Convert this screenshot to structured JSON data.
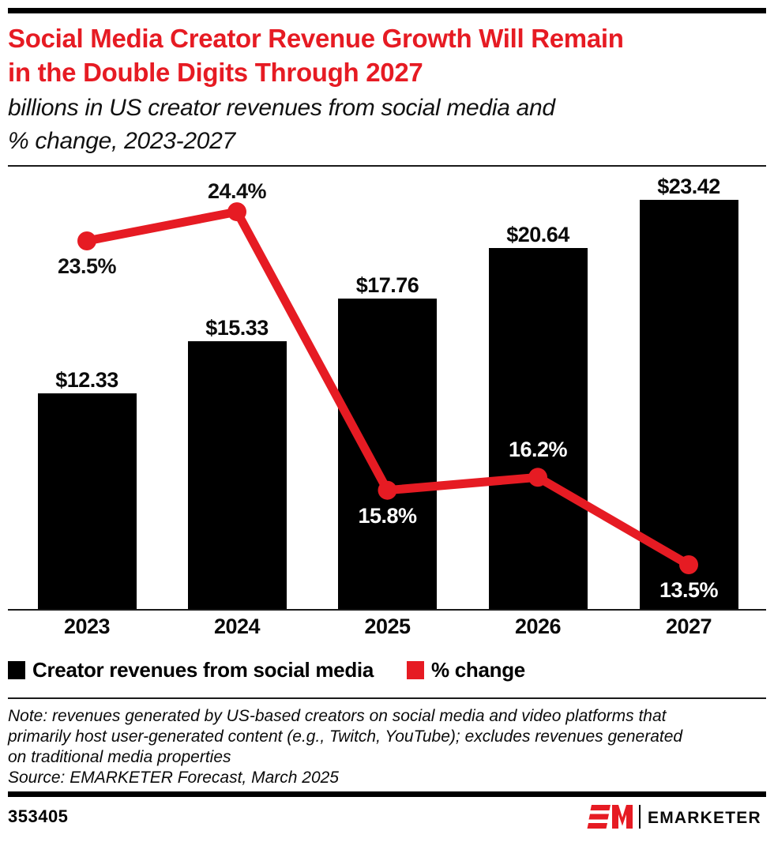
{
  "header": {
    "title_lines": [
      "Social Media Creator Revenue Growth Will Remain",
      "in the Double Digits Through 2027"
    ],
    "title_color": "#E61B23",
    "subtitle_lines": [
      "billions in US creator revenues from social media and",
      "% change, 2023-2027"
    ]
  },
  "chart_data": {
    "type": "combo",
    "categories": [
      "2023",
      "2024",
      "2025",
      "2026",
      "2027"
    ],
    "series": [
      {
        "name": "Creator revenues from social media",
        "type": "bar",
        "unit": "billions of US dollars",
        "values": [
          12.33,
          15.33,
          17.76,
          20.64,
          23.42
        ],
        "labels": [
          "$12.33",
          "$15.33",
          "$17.76",
          "$20.64",
          "$23.42"
        ],
        "color": "#000000"
      },
      {
        "name": "% change",
        "type": "line",
        "unit": "%",
        "values": [
          23.5,
          24.4,
          15.8,
          16.2,
          13.5
        ],
        "labels": [
          "23.5%",
          "24.4%",
          "15.8%",
          "16.2%",
          "13.5%"
        ],
        "color": "#E61B23"
      }
    ],
    "title": "Social Media Creator Revenue Growth Will Remain in the Double Digits Through 2027",
    "xlabel": "",
    "ylabel": "",
    "value_axis": "hidden (data labels shown on points and bars)",
    "grid": false,
    "legend_position": "bottom"
  },
  "legend": {
    "items": [
      {
        "label": "Creator revenues from social media",
        "color": "#000000"
      },
      {
        "label": "% change",
        "color": "#E61B23"
      }
    ]
  },
  "footnote": {
    "note_lines": [
      "Note: revenues generated by US-based creators on social media and video platforms that",
      "primarily host user-generated content (e.g., Twitch, YouTube); excludes revenues generated",
      "on traditional media properties"
    ],
    "source": "Source: EMARKETER Forecast, March 2025"
  },
  "footer": {
    "chart_id": "353405",
    "brand": "EMARKETER"
  }
}
